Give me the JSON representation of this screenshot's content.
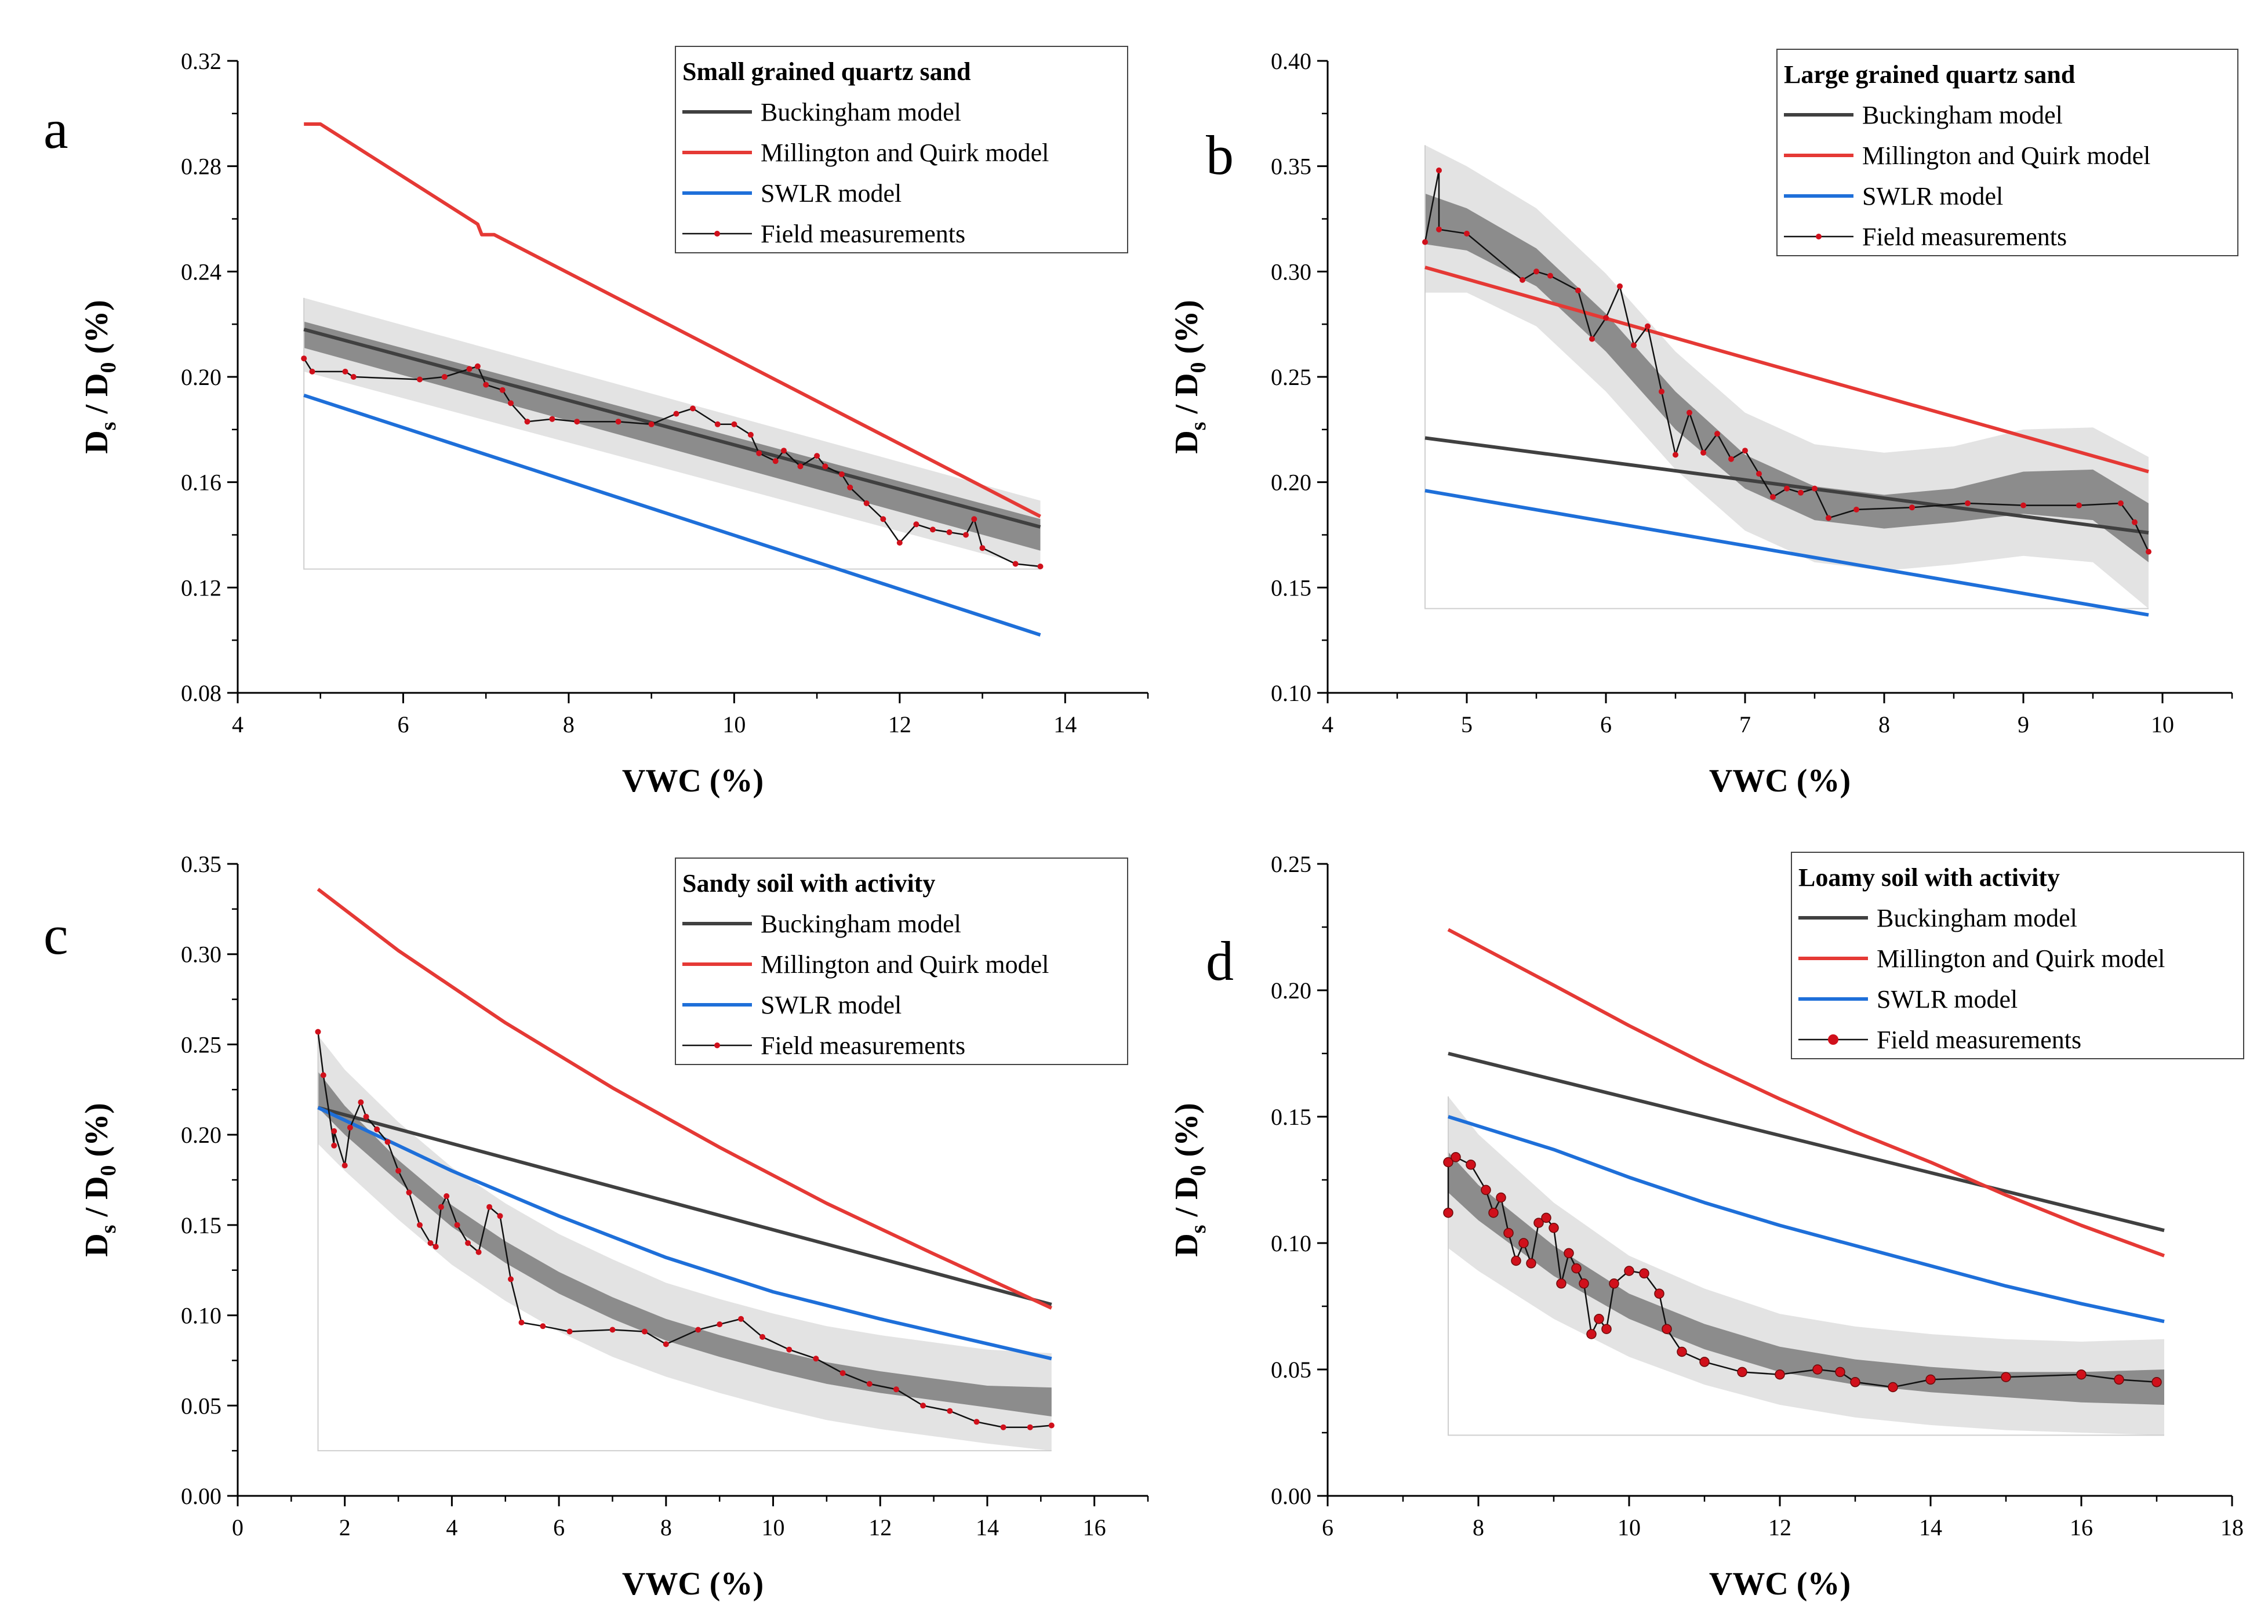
{
  "colors": {
    "buckingham": "#404040",
    "millington": "#e53935",
    "swlr": "#1e6fd9",
    "field_line": "#111111",
    "field_marker": "#d0101b",
    "band_outer": "#e3e3e3",
    "band_inner": "#8c8c8c"
  },
  "chart_data": [
    {
      "panel": "a",
      "type": "line",
      "legend_title": "Small grained quartz sand",
      "legend_loc": "top-right",
      "xlabel": "VWC (%)",
      "ylabel": "Ds / D0 (%)",
      "xlim": [
        4,
        15
      ],
      "ylim": [
        0.08,
        0.32
      ],
      "xticks": [
        4,
        6,
        8,
        10,
        12,
        14
      ],
      "xtick_labels": [
        "4",
        "6",
        "8",
        "10",
        "12",
        "14"
      ],
      "yticks": [
        0.08,
        0.12,
        0.16,
        0.2,
        0.24,
        0.28,
        0.32
      ],
      "ytick_labels": [
        "0.08",
        "0.12",
        "0.16",
        "0.20",
        "0.24",
        "0.28",
        "0.32"
      ],
      "series": [
        {
          "name": "Buckingham model",
          "key": "buckingham",
          "x": [
            4.8,
            13.7
          ],
          "y": [
            0.218,
            0.143
          ]
        },
        {
          "name": "Millington and Quirk model",
          "key": "millington",
          "x": [
            4.8,
            5.0,
            6.9,
            6.95,
            7.1,
            13.7
          ],
          "y": [
            0.296,
            0.296,
            0.258,
            0.254,
            0.254,
            0.147
          ]
        },
        {
          "name": "SWLR model",
          "key": "swlr",
          "x": [
            4.8,
            13.7
          ],
          "y": [
            0.193,
            0.102
          ]
        },
        {
          "name": "Field measurements",
          "key": "field",
          "x": [
            4.8,
            4.9,
            5.3,
            5.4,
            6.2,
            6.5,
            6.8,
            6.9,
            7.0,
            7.2,
            7.3,
            7.5,
            7.8,
            8.1,
            8.6,
            9.0,
            9.3,
            9.5,
            9.8,
            10.0,
            10.2,
            10.3,
            10.5,
            10.6,
            10.8,
            11.0,
            11.1,
            11.3,
            11.4,
            11.6,
            11.8,
            12.0,
            12.2,
            12.4,
            12.6,
            12.8,
            12.9,
            13.0,
            13.4,
            13.7
          ],
          "y": [
            0.207,
            0.202,
            0.202,
            0.2,
            0.199,
            0.2,
            0.203,
            0.204,
            0.197,
            0.195,
            0.19,
            0.183,
            0.184,
            0.183,
            0.183,
            0.182,
            0.186,
            0.188,
            0.182,
            0.182,
            0.178,
            0.171,
            0.168,
            0.172,
            0.166,
            0.17,
            0.166,
            0.163,
            0.158,
            0.152,
            0.146,
            0.137,
            0.144,
            0.142,
            0.141,
            0.14,
            0.146,
            0.135,
            0.129,
            0.128
          ]
        }
      ],
      "fit_band": {
        "x": [
          4.8,
          13.7
        ],
        "center": [
          0.216,
          0.14
        ],
        "outer_half": [
          0.014,
          0.013
        ],
        "inner_half": [
          0.005,
          0.006
        ]
      }
    },
    {
      "panel": "b",
      "type": "line",
      "legend_title": "Large grained quartz sand",
      "legend_loc": "top-right",
      "xlabel": "VWC (%)",
      "ylabel": "Ds / D0 (%)",
      "xlim": [
        4,
        10.5
      ],
      "ylim": [
        0.1,
        0.4
      ],
      "xticks": [
        4,
        5,
        6,
        7,
        8,
        9,
        10
      ],
      "xtick_labels": [
        "4",
        "5",
        "6",
        "7",
        "8",
        "9",
        "10"
      ],
      "yticks": [
        0.1,
        0.15,
        0.2,
        0.25,
        0.3,
        0.35,
        0.4
      ],
      "ytick_labels": [
        "0.10",
        "0.15",
        "0.20",
        "0.25",
        "0.30",
        "0.35",
        "0.40"
      ],
      "series": [
        {
          "name": "Buckingham model",
          "key": "buckingham",
          "x": [
            4.7,
            9.9
          ],
          "y": [
            0.221,
            0.176
          ]
        },
        {
          "name": "Millington and Quirk model",
          "key": "millington",
          "x": [
            4.7,
            9.9
          ],
          "y": [
            0.302,
            0.205
          ]
        },
        {
          "name": "SWLR model",
          "key": "swlr",
          "x": [
            4.7,
            9.9
          ],
          "y": [
            0.196,
            0.137
          ]
        },
        {
          "name": "Field measurements",
          "key": "field",
          "x": [
            4.7,
            4.8,
            4.8,
            5.0,
            5.4,
            5.5,
            5.6,
            5.8,
            5.9,
            6.0,
            6.1,
            6.2,
            6.3,
            6.4,
            6.5,
            6.6,
            6.7,
            6.8,
            6.9,
            7.0,
            7.1,
            7.2,
            7.3,
            7.4,
            7.5,
            7.6,
            7.8,
            8.2,
            8.6,
            9.0,
            9.4,
            9.7,
            9.8,
            9.9
          ],
          "y": [
            0.314,
            0.348,
            0.32,
            0.318,
            0.296,
            0.3,
            0.298,
            0.291,
            0.268,
            0.278,
            0.293,
            0.265,
            0.274,
            0.243,
            0.213,
            0.233,
            0.214,
            0.223,
            0.211,
            0.215,
            0.204,
            0.193,
            0.197,
            0.195,
            0.197,
            0.183,
            0.187,
            0.188,
            0.19,
            0.189,
            0.189,
            0.19,
            0.181,
            0.167
          ]
        }
      ],
      "fit_band": {
        "x": [
          4.7,
          5.0,
          5.5,
          6.0,
          6.5,
          7.0,
          7.5,
          8.0,
          8.5,
          9.0,
          9.5,
          9.9
        ],
        "center": [
          0.325,
          0.32,
          0.302,
          0.271,
          0.234,
          0.205,
          0.19,
          0.186,
          0.189,
          0.195,
          0.194,
          0.176
        ],
        "outer_half": [
          0.035,
          0.03,
          0.028,
          0.028,
          0.028,
          0.028,
          0.028,
          0.028,
          0.028,
          0.03,
          0.032,
          0.036
        ],
        "inner_half": [
          0.012,
          0.01,
          0.009,
          0.009,
          0.009,
          0.008,
          0.008,
          0.008,
          0.008,
          0.01,
          0.012,
          0.014
        ]
      }
    },
    {
      "panel": "c",
      "type": "line",
      "legend_title": "Sandy soil with activity",
      "legend_loc": "top-right",
      "xlabel": "VWC (%)",
      "ylabel": "Ds / D0 (%)",
      "xlim": [
        0,
        17
      ],
      "ylim": [
        0.0,
        0.35
      ],
      "xticks": [
        0,
        2,
        4,
        6,
        8,
        10,
        12,
        14,
        16
      ],
      "xtick_labels": [
        "0",
        "2",
        "4",
        "6",
        "8",
        "10",
        "12",
        "14",
        "16"
      ],
      "yticks": [
        0.0,
        0.05,
        0.1,
        0.15,
        0.2,
        0.25,
        0.3,
        0.35
      ],
      "ytick_labels": [
        "0.00",
        "0.05",
        "0.10",
        "0.15",
        "0.20",
        "0.25",
        "0.30",
        "0.35"
      ],
      "series": [
        {
          "name": "Buckingham model",
          "key": "buckingham",
          "x": [
            1.5,
            15.2
          ],
          "y": [
            0.215,
            0.106
          ]
        },
        {
          "name": "Millington and Quirk model",
          "key": "millington",
          "x": [
            1.5,
            3,
            5,
            7,
            9,
            11,
            13,
            15.2
          ],
          "y": [
            0.336,
            0.302,
            0.262,
            0.226,
            0.193,
            0.162,
            0.134,
            0.104
          ]
        },
        {
          "name": "SWLR model",
          "key": "swlr",
          "x": [
            1.5,
            4,
            6,
            8,
            10,
            12,
            15.2
          ],
          "y": [
            0.215,
            0.18,
            0.155,
            0.132,
            0.113,
            0.098,
            0.076
          ]
        },
        {
          "name": "Field measurements",
          "key": "field",
          "x": [
            1.5,
            1.6,
            1.8,
            1.8,
            2.0,
            2.1,
            2.3,
            2.4,
            2.6,
            2.8,
            3.0,
            3.2,
            3.4,
            3.6,
            3.7,
            3.8,
            3.9,
            4.1,
            4.3,
            4.5,
            4.7,
            4.9,
            5.1,
            5.3,
            5.7,
            6.2,
            7.0,
            7.6,
            8.0,
            8.6,
            9.0,
            9.4,
            9.8,
            10.3,
            10.8,
            11.3,
            11.8,
            12.3,
            12.8,
            13.3,
            13.8,
            14.3,
            14.8,
            15.2
          ],
          "y": [
            0.257,
            0.233,
            0.194,
            0.202,
            0.183,
            0.204,
            0.218,
            0.21,
            0.203,
            0.196,
            0.18,
            0.168,
            0.15,
            0.14,
            0.138,
            0.16,
            0.166,
            0.15,
            0.14,
            0.135,
            0.16,
            0.155,
            0.12,
            0.096,
            0.094,
            0.091,
            0.092,
            0.091,
            0.084,
            0.092,
            0.095,
            0.098,
            0.088,
            0.081,
            0.076,
            0.068,
            0.062,
            0.059,
            0.05,
            0.047,
            0.041,
            0.038,
            0.038,
            0.039
          ]
        }
      ],
      "fit_band": {
        "x": [
          1.5,
          2,
          3,
          4,
          5,
          6,
          7,
          8,
          9,
          10,
          11,
          12,
          13,
          14,
          15.2
        ],
        "center": [
          0.225,
          0.208,
          0.18,
          0.155,
          0.135,
          0.118,
          0.104,
          0.092,
          0.083,
          0.075,
          0.068,
          0.063,
          0.059,
          0.055,
          0.052
        ],
        "outer_half": [
          0.03,
          0.028,
          0.027,
          0.027,
          0.027,
          0.027,
          0.027,
          0.026,
          0.026,
          0.026,
          0.026,
          0.026,
          0.026,
          0.026,
          0.027
        ],
        "inner_half": [
          0.01,
          0.008,
          0.006,
          0.006,
          0.006,
          0.006,
          0.006,
          0.006,
          0.006,
          0.006,
          0.006,
          0.006,
          0.006,
          0.006,
          0.008
        ]
      }
    },
    {
      "panel": "d",
      "type": "line",
      "legend_title": "Loamy soil with activity",
      "legend_loc": "top-right",
      "xlabel": "VWC (%)",
      "ylabel": "Ds / D0 (%)",
      "xlim": [
        6,
        18
      ],
      "ylim": [
        0.0,
        0.25
      ],
      "xticks": [
        6,
        8,
        10,
        12,
        14,
        16,
        18
      ],
      "xtick_labels": [
        "6",
        "8",
        "10",
        "12",
        "14",
        "16",
        "18"
      ],
      "yticks": [
        0.0,
        0.05,
        0.1,
        0.15,
        0.2,
        0.25
      ],
      "ytick_labels": [
        "0.00",
        "0.05",
        "0.10",
        "0.15",
        "0.20",
        "0.25"
      ],
      "series": [
        {
          "name": "Buckingham model",
          "key": "buckingham",
          "x": [
            7.6,
            17.1
          ],
          "y": [
            0.175,
            0.105
          ]
        },
        {
          "name": "Millington and Quirk model",
          "key": "millington",
          "x": [
            7.6,
            9,
            10,
            11,
            12,
            13,
            14,
            15,
            16,
            17.1
          ],
          "y": [
            0.224,
            0.202,
            0.186,
            0.171,
            0.157,
            0.144,
            0.132,
            0.119,
            0.107,
            0.095
          ]
        },
        {
          "name": "SWLR model",
          "key": "swlr",
          "x": [
            7.6,
            9,
            10,
            11,
            12,
            13,
            14,
            15,
            16,
            17.1
          ],
          "y": [
            0.15,
            0.137,
            0.126,
            0.116,
            0.107,
            0.099,
            0.091,
            0.083,
            0.076,
            0.069
          ]
        },
        {
          "name": "Field measurements",
          "key": "field",
          "x": [
            7.6,
            7.6,
            7.7,
            7.9,
            8.1,
            8.2,
            8.3,
            8.4,
            8.5,
            8.6,
            8.7,
            8.8,
            8.9,
            9.0,
            9.1,
            9.2,
            9.3,
            9.4,
            9.5,
            9.6,
            9.7,
            9.8,
            10.0,
            10.2,
            10.4,
            10.5,
            10.7,
            11.0,
            11.5,
            12.0,
            12.5,
            12.8,
            13.0,
            13.5,
            14.0,
            15.0,
            16.0,
            16.5,
            17.0
          ],
          "y": [
            0.112,
            0.132,
            0.134,
            0.131,
            0.121,
            0.112,
            0.118,
            0.104,
            0.093,
            0.1,
            0.092,
            0.108,
            0.11,
            0.106,
            0.084,
            0.096,
            0.09,
            0.084,
            0.064,
            0.07,
            0.066,
            0.084,
            0.089,
            0.088,
            0.08,
            0.066,
            0.057,
            0.053,
            0.049,
            0.048,
            0.05,
            0.049,
            0.045,
            0.043,
            0.046,
            0.047,
            0.048,
            0.046,
            0.045
          ]
        }
      ],
      "fit_band": {
        "x": [
          7.6,
          8,
          9,
          10,
          11,
          12,
          13,
          14,
          15,
          16,
          17.1
        ],
        "center": [
          0.128,
          0.116,
          0.093,
          0.075,
          0.063,
          0.054,
          0.049,
          0.046,
          0.044,
          0.043,
          0.043
        ],
        "outer_half": [
          0.03,
          0.027,
          0.023,
          0.02,
          0.019,
          0.018,
          0.018,
          0.018,
          0.018,
          0.018,
          0.019
        ],
        "inner_half": [
          0.008,
          0.007,
          0.006,
          0.005,
          0.005,
          0.005,
          0.005,
          0.005,
          0.005,
          0.006,
          0.007
        ]
      }
    }
  ]
}
